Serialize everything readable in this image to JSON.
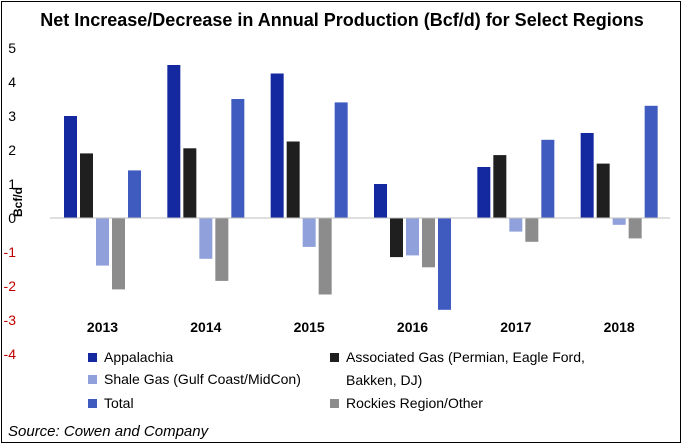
{
  "chart_data": {
    "type": "bar",
    "title": "Net Increase/Decrease in Annual Production (Bcf/d) for Select Regions",
    "ylabel": "Bcf/d",
    "xlabel": "",
    "ylim": [
      -4,
      5
    ],
    "yticks": [
      5,
      4,
      3,
      2,
      1,
      0,
      -1,
      -2,
      -3,
      -4
    ],
    "grid": false,
    "legend_position": "bottom",
    "categories": [
      "2013",
      "2014",
      "2015",
      "2016",
      "2017",
      "2018"
    ],
    "series": [
      {
        "name": "Appalachia",
        "color": "#1428A0",
        "values": [
          3.0,
          4.5,
          4.25,
          1.0,
          1.5,
          2.5
        ]
      },
      {
        "name": "Associated Gas (Permian, Eagle Ford, Bakken, DJ)",
        "color": "#1F1F1F",
        "values": [
          1.9,
          2.05,
          2.25,
          -1.15,
          1.85,
          1.6
        ]
      },
      {
        "name": "Shale Gas (Gulf Coast/MidCon)",
        "color": "#8FA0DA",
        "values": [
          -1.4,
          -1.2,
          -0.85,
          -1.1,
          -0.4,
          -0.2
        ]
      },
      {
        "name": "Rockies Region/Other",
        "color": "#8C8C8C",
        "values": [
          -2.1,
          -1.85,
          -2.25,
          -1.45,
          -0.7,
          -0.6
        ]
      },
      {
        "name": "Total",
        "color": "#3F5BBF",
        "values": [
          1.4,
          3.5,
          3.4,
          -2.7,
          2.3,
          3.3
        ]
      }
    ],
    "legend": {
      "left": [
        "Appalachia",
        "Shale Gas (Gulf Coast/MidCon)",
        "Total"
      ],
      "right": [
        "Associated Gas (Permian, Eagle Ford,",
        "Bakken, DJ)",
        "Rockies Region/Other"
      ]
    },
    "tick_colors": {
      "positive": "#000000",
      "negative": "#C00000"
    }
  },
  "source": "Source: Cowen and Company"
}
